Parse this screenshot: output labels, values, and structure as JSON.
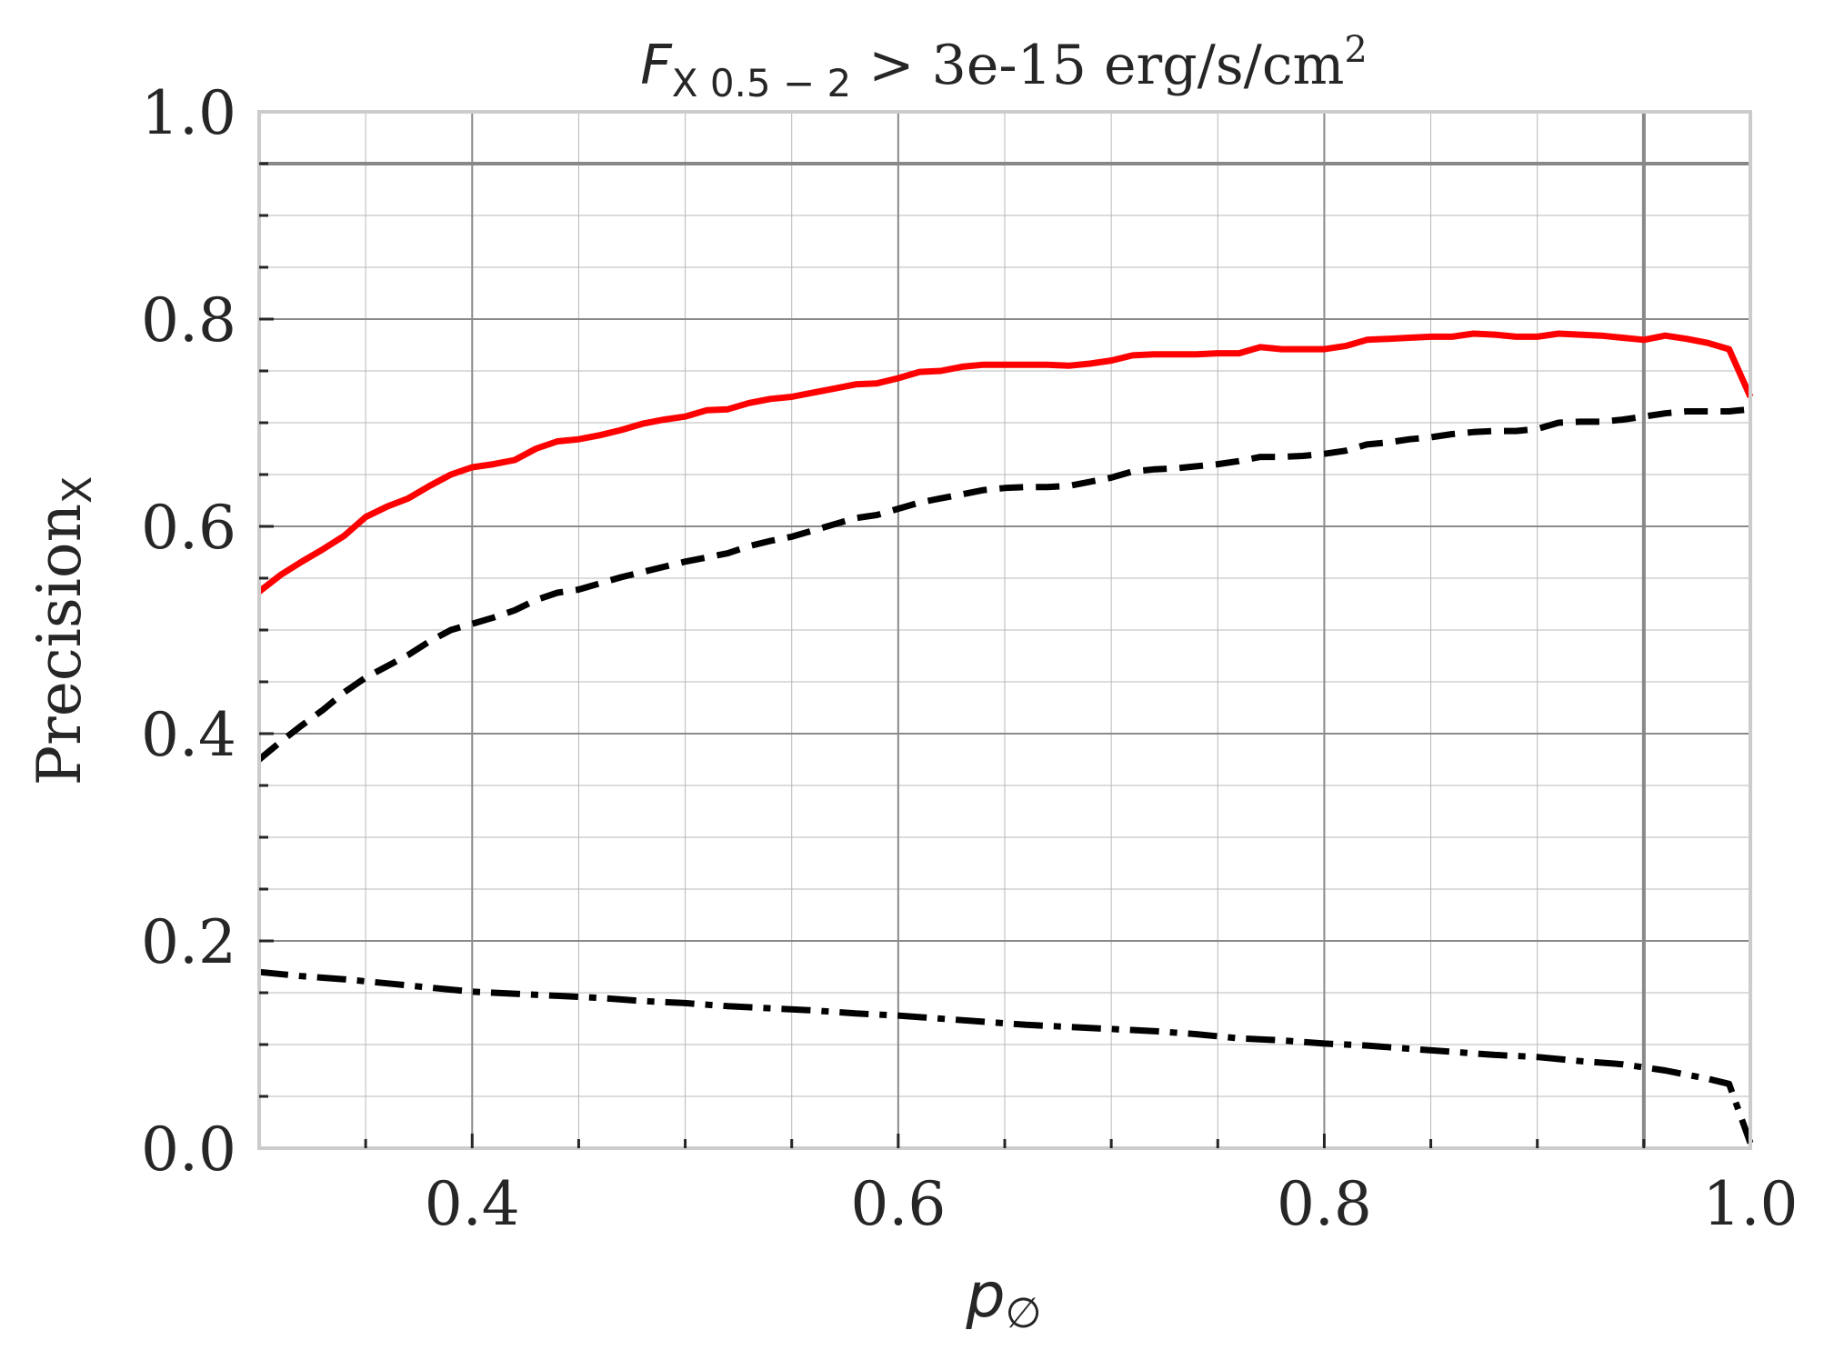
{
  "chart_data": {
    "type": "line",
    "title": {
      "symbol": "F",
      "subscript": "X 0.5 − 2",
      "text": " > 3e-15 erg/s/cm",
      "superscript": "2"
    },
    "xlabel": {
      "symbol": "p",
      "subscript": "∅"
    },
    "ylabel": {
      "text": "Precision",
      "subscript": "X"
    },
    "xlim": [
      0.3,
      1.0
    ],
    "ylim": [
      0.0,
      1.0
    ],
    "xticks": [
      0.4,
      0.6,
      0.8,
      1.0
    ],
    "xtick_labels": [
      "0.4",
      "0.6",
      "0.8",
      "1.0"
    ],
    "yticks": [
      0.0,
      0.2,
      0.4,
      0.6,
      0.8,
      1.0
    ],
    "ytick_labels": [
      "0.0",
      "0.2",
      "0.4",
      "0.6",
      "0.8",
      "1.0"
    ],
    "minor_xstep": 0.05,
    "minor_ystep": 0.05,
    "grid": true,
    "reference_lines": [
      {
        "orientation": "horizontal",
        "value": 0.95,
        "color": "#888888"
      },
      {
        "orientation": "vertical",
        "value": 0.95,
        "color": "#888888"
      }
    ],
    "series": [
      {
        "style": "solid",
        "color": "#ff0000",
        "x": [
          0.3,
          0.31,
          0.32,
          0.33,
          0.34,
          0.35,
          0.36,
          0.37,
          0.38,
          0.39,
          0.4,
          0.41,
          0.42,
          0.43,
          0.44,
          0.45,
          0.46,
          0.47,
          0.48,
          0.49,
          0.5,
          0.51,
          0.52,
          0.53,
          0.54,
          0.55,
          0.56,
          0.57,
          0.58,
          0.59,
          0.6,
          0.61,
          0.62,
          0.63,
          0.64,
          0.65,
          0.66,
          0.67,
          0.68,
          0.69,
          0.7,
          0.71,
          0.72,
          0.73,
          0.74,
          0.75,
          0.76,
          0.77,
          0.78,
          0.79,
          0.8,
          0.81,
          0.82,
          0.83,
          0.84,
          0.85,
          0.86,
          0.87,
          0.88,
          0.89,
          0.9,
          0.91,
          0.92,
          0.93,
          0.94,
          0.95,
          0.96,
          0.97,
          0.98,
          0.99,
          1.0
        ],
        "y": [
          0.537,
          0.553,
          0.566,
          0.578,
          0.591,
          0.609,
          0.619,
          0.627,
          0.639,
          0.65,
          0.657,
          0.66,
          0.664,
          0.675,
          0.682,
          0.684,
          0.688,
          0.693,
          0.699,
          0.703,
          0.706,
          0.712,
          0.713,
          0.719,
          0.723,
          0.725,
          0.729,
          0.733,
          0.737,
          0.738,
          0.743,
          0.749,
          0.75,
          0.754,
          0.756,
          0.756,
          0.756,
          0.756,
          0.755,
          0.757,
          0.76,
          0.765,
          0.766,
          0.766,
          0.766,
          0.767,
          0.767,
          0.773,
          0.771,
          0.771,
          0.771,
          0.774,
          0.78,
          0.781,
          0.782,
          0.783,
          0.783,
          0.786,
          0.785,
          0.783,
          0.783,
          0.786,
          0.785,
          0.784,
          0.782,
          0.78,
          0.784,
          0.781,
          0.777,
          0.771,
          0.725
        ]
      },
      {
        "style": "dashed",
        "color": "#000000",
        "x": [
          0.3,
          0.31,
          0.32,
          0.33,
          0.34,
          0.35,
          0.36,
          0.37,
          0.38,
          0.39,
          0.4,
          0.41,
          0.42,
          0.43,
          0.44,
          0.45,
          0.46,
          0.47,
          0.48,
          0.49,
          0.5,
          0.51,
          0.52,
          0.53,
          0.54,
          0.55,
          0.56,
          0.57,
          0.58,
          0.59,
          0.6,
          0.61,
          0.62,
          0.63,
          0.64,
          0.65,
          0.66,
          0.67,
          0.68,
          0.69,
          0.7,
          0.71,
          0.72,
          0.73,
          0.74,
          0.75,
          0.76,
          0.77,
          0.78,
          0.79,
          0.8,
          0.81,
          0.82,
          0.83,
          0.84,
          0.85,
          0.86,
          0.87,
          0.88,
          0.89,
          0.9,
          0.91,
          0.92,
          0.93,
          0.94,
          0.95,
          0.96,
          0.97,
          0.98,
          0.99,
          1.0
        ],
        "y": [
          0.375,
          0.392,
          0.408,
          0.423,
          0.44,
          0.454,
          0.465,
          0.476,
          0.489,
          0.5,
          0.506,
          0.512,
          0.519,
          0.529,
          0.536,
          0.539,
          0.545,
          0.551,
          0.556,
          0.561,
          0.566,
          0.57,
          0.574,
          0.581,
          0.586,
          0.59,
          0.596,
          0.602,
          0.608,
          0.611,
          0.617,
          0.623,
          0.627,
          0.631,
          0.635,
          0.637,
          0.638,
          0.638,
          0.639,
          0.643,
          0.647,
          0.653,
          0.655,
          0.656,
          0.658,
          0.66,
          0.663,
          0.667,
          0.667,
          0.668,
          0.67,
          0.673,
          0.679,
          0.681,
          0.684,
          0.686,
          0.689,
          0.691,
          0.692,
          0.692,
          0.694,
          0.7,
          0.701,
          0.701,
          0.703,
          0.706,
          0.709,
          0.711,
          0.711,
          0.711,
          0.713
        ]
      },
      {
        "style": "dashdot",
        "color": "#000000",
        "x": [
          0.3,
          0.32,
          0.34,
          0.36,
          0.38,
          0.4,
          0.42,
          0.44,
          0.46,
          0.48,
          0.5,
          0.52,
          0.54,
          0.56,
          0.58,
          0.6,
          0.62,
          0.64,
          0.66,
          0.68,
          0.7,
          0.72,
          0.74,
          0.76,
          0.78,
          0.8,
          0.82,
          0.84,
          0.86,
          0.88,
          0.9,
          0.92,
          0.94,
          0.95,
          0.96,
          0.97,
          0.98,
          0.99,
          1.0
        ],
        "y": [
          0.17,
          0.166,
          0.163,
          0.159,
          0.155,
          0.151,
          0.149,
          0.147,
          0.145,
          0.142,
          0.14,
          0.137,
          0.135,
          0.133,
          0.13,
          0.128,
          0.125,
          0.122,
          0.119,
          0.117,
          0.115,
          0.113,
          0.11,
          0.106,
          0.104,
          0.101,
          0.099,
          0.096,
          0.093,
          0.09,
          0.088,
          0.084,
          0.081,
          0.078,
          0.075,
          0.071,
          0.067,
          0.062,
          0.005
        ]
      }
    ]
  }
}
